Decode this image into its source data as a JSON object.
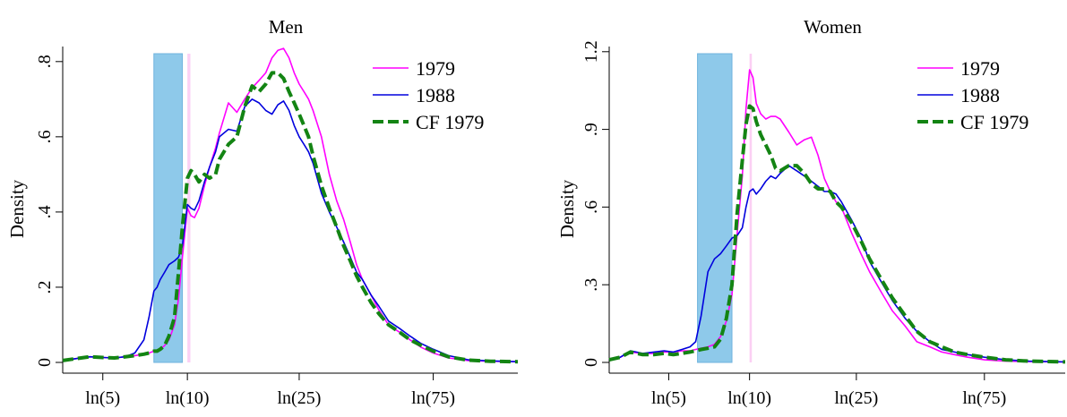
{
  "chart_data": [
    {
      "type": "line",
      "title": "Men",
      "xlabel": "",
      "ylabel": "Density",
      "x_scale": "log",
      "xlim": [
        3.6,
        150
      ],
      "ylim": [
        0,
        0.84
      ],
      "y_ticks": [
        0,
        0.2,
        0.4,
        0.6,
        0.8
      ],
      "y_tick_labels": [
        "0",
        ".2",
        ".4",
        ".6",
        ".8"
      ],
      "x_ticks": [
        5,
        10,
        25,
        75
      ],
      "x_tick_labels": [
        "ln(5)",
        "ln(10)",
        "ln(25)",
        "ln(75)"
      ],
      "shaded_regions": [
        {
          "x0": 7.6,
          "x1": 9.6,
          "color": "#8ec9ea"
        },
        {
          "x0": 10.0,
          "x1": 10.25,
          "color": "#fbd0f4"
        }
      ],
      "legend_position": "top-right",
      "x": [
        3.6,
        4.0,
        4.5,
        5.0,
        5.5,
        6.0,
        6.5,
        7.0,
        7.3,
        7.6,
        7.8,
        8.0,
        8.3,
        8.6,
        9.0,
        9.3,
        9.6,
        10.0,
        10.3,
        10.6,
        11.0,
        11.5,
        12.0,
        12.6,
        13.0,
        14.0,
        15.0,
        16.0,
        17.0,
        18.0,
        19.0,
        20.0,
        21.0,
        22.0,
        23.0,
        24.0,
        25.0,
        26.0,
        27.0,
        28.0,
        30.0,
        32.0,
        34.0,
        36.0,
        38.0,
        40.0,
        42.0,
        45.0,
        48.0,
        52.0,
        57.0,
        62.0,
        68.0,
        75.0,
        85.0,
        100.0,
        120.0,
        150.0
      ],
      "series": [
        {
          "name": "1979",
          "color": "#ff00ff",
          "width": 1.6,
          "dash": "",
          "values": [
            0.005,
            0.01,
            0.015,
            0.013,
            0.012,
            0.015,
            0.018,
            0.022,
            0.025,
            0.03,
            0.03,
            0.035,
            0.045,
            0.06,
            0.1,
            0.17,
            0.28,
            0.41,
            0.39,
            0.385,
            0.41,
            0.47,
            0.52,
            0.57,
            0.61,
            0.69,
            0.665,
            0.7,
            0.73,
            0.75,
            0.77,
            0.81,
            0.83,
            0.835,
            0.81,
            0.77,
            0.74,
            0.72,
            0.7,
            0.67,
            0.6,
            0.5,
            0.43,
            0.38,
            0.32,
            0.26,
            0.22,
            0.18,
            0.14,
            0.1,
            0.08,
            0.06,
            0.04,
            0.025,
            0.012,
            0.005,
            0.003,
            0.002
          ]
        },
        {
          "name": "1988",
          "color": "#0000dd",
          "width": 1.6,
          "dash": "",
          "values": [
            0.005,
            0.01,
            0.015,
            0.013,
            0.012,
            0.015,
            0.025,
            0.06,
            0.12,
            0.19,
            0.2,
            0.22,
            0.24,
            0.26,
            0.27,
            0.28,
            0.31,
            0.42,
            0.41,
            0.405,
            0.43,
            0.48,
            0.52,
            0.56,
            0.6,
            0.62,
            0.615,
            0.68,
            0.7,
            0.69,
            0.67,
            0.66,
            0.685,
            0.695,
            0.67,
            0.63,
            0.6,
            0.58,
            0.56,
            0.53,
            0.45,
            0.4,
            0.36,
            0.32,
            0.28,
            0.24,
            0.22,
            0.18,
            0.15,
            0.11,
            0.09,
            0.07,
            0.05,
            0.035,
            0.018,
            0.007,
            0.004,
            0.002
          ]
        },
        {
          "name": "CF 1979",
          "color": "#138413",
          "width": 4,
          "dash": "12,5",
          "values": [
            0.005,
            0.01,
            0.015,
            0.013,
            0.012,
            0.015,
            0.018,
            0.022,
            0.025,
            0.03,
            0.03,
            0.035,
            0.045,
            0.07,
            0.12,
            0.24,
            0.36,
            0.49,
            0.51,
            0.5,
            0.48,
            0.5,
            0.49,
            0.5,
            0.54,
            0.58,
            0.6,
            0.68,
            0.735,
            0.72,
            0.74,
            0.77,
            0.77,
            0.755,
            0.72,
            0.69,
            0.66,
            0.63,
            0.6,
            0.55,
            0.47,
            0.41,
            0.36,
            0.31,
            0.27,
            0.23,
            0.2,
            0.16,
            0.13,
            0.1,
            0.08,
            0.06,
            0.045,
            0.03,
            0.015,
            0.006,
            0.003,
            0.002
          ]
        }
      ]
    },
    {
      "type": "line",
      "title": "Women",
      "xlabel": "",
      "ylabel": "Density",
      "x_scale": "log",
      "xlim": [
        3.0,
        150
      ],
      "ylim": [
        0,
        1.22
      ],
      "y_ticks": [
        0,
        0.3,
        0.6,
        0.9,
        1.2
      ],
      "y_tick_labels": [
        "0",
        ".3",
        ".6",
        ".9",
        "1.2"
      ],
      "x_ticks": [
        5,
        10,
        25,
        75
      ],
      "x_tick_labels": [
        "ln(5)",
        "ln(10)",
        "ln(25)",
        "ln(75)"
      ],
      "shaded_regions": [
        {
          "x0": 6.4,
          "x1": 8.6,
          "color": "#8ec9ea"
        },
        {
          "x0": 10.0,
          "x1": 10.2,
          "color": "#fbd0f4"
        }
      ],
      "legend_position": "top-right",
      "x": [
        3.0,
        3.3,
        3.6,
        4.0,
        4.4,
        4.8,
        5.2,
        5.6,
        6.0,
        6.3,
        6.6,
        7.0,
        7.4,
        7.8,
        8.2,
        8.6,
        9.0,
        9.4,
        9.7,
        10.0,
        10.3,
        10.6,
        11.0,
        11.5,
        12.0,
        12.5,
        13.0,
        14.0,
        15.0,
        16.0,
        17.0,
        18.0,
        19.0,
        20.0,
        21.0,
        22.0,
        24.0,
        26.0,
        28.0,
        31.0,
        34.0,
        38.0,
        42.0,
        47.0,
        52.0,
        58.0,
        65.0,
        75.0,
        90.0,
        110.0,
        150.0
      ],
      "series": [
        {
          "name": "1979",
          "color": "#ff00ff",
          "width": 1.6,
          "dash": "",
          "values": [
            0.01,
            0.02,
            0.04,
            0.035,
            0.035,
            0.04,
            0.04,
            0.045,
            0.045,
            0.05,
            0.055,
            0.06,
            0.07,
            0.1,
            0.16,
            0.26,
            0.5,
            0.72,
            0.98,
            1.13,
            1.1,
            1.0,
            0.96,
            0.94,
            0.95,
            0.95,
            0.94,
            0.89,
            0.84,
            0.86,
            0.87,
            0.8,
            0.71,
            0.66,
            0.62,
            0.6,
            0.5,
            0.42,
            0.35,
            0.27,
            0.2,
            0.14,
            0.08,
            0.06,
            0.04,
            0.03,
            0.02,
            0.01,
            0.005,
            0.003,
            0.002
          ]
        },
        {
          "name": "1988",
          "color": "#0000dd",
          "width": 1.6,
          "dash": "",
          "values": [
            0.01,
            0.02,
            0.045,
            0.035,
            0.04,
            0.045,
            0.04,
            0.05,
            0.06,
            0.08,
            0.18,
            0.35,
            0.4,
            0.42,
            0.45,
            0.48,
            0.49,
            0.52,
            0.6,
            0.66,
            0.67,
            0.65,
            0.67,
            0.7,
            0.72,
            0.71,
            0.73,
            0.76,
            0.74,
            0.72,
            0.7,
            0.68,
            0.66,
            0.66,
            0.65,
            0.62,
            0.55,
            0.48,
            0.39,
            0.31,
            0.24,
            0.17,
            0.12,
            0.08,
            0.05,
            0.04,
            0.03,
            0.02,
            0.01,
            0.005,
            0.002
          ]
        },
        {
          "name": "CF 1979",
          "color": "#138413",
          "width": 4,
          "dash": "12,5",
          "values": [
            0.01,
            0.02,
            0.04,
            0.03,
            0.03,
            0.035,
            0.03,
            0.035,
            0.04,
            0.045,
            0.05,
            0.055,
            0.06,
            0.09,
            0.17,
            0.3,
            0.58,
            0.78,
            0.92,
            0.99,
            0.98,
            0.93,
            0.88,
            0.84,
            0.8,
            0.75,
            0.74,
            0.76,
            0.76,
            0.73,
            0.69,
            0.67,
            0.67,
            0.66,
            0.62,
            0.6,
            0.54,
            0.47,
            0.4,
            0.32,
            0.25,
            0.18,
            0.12,
            0.08,
            0.06,
            0.04,
            0.03,
            0.02,
            0.01,
            0.005,
            0.002
          ]
        }
      ]
    }
  ]
}
